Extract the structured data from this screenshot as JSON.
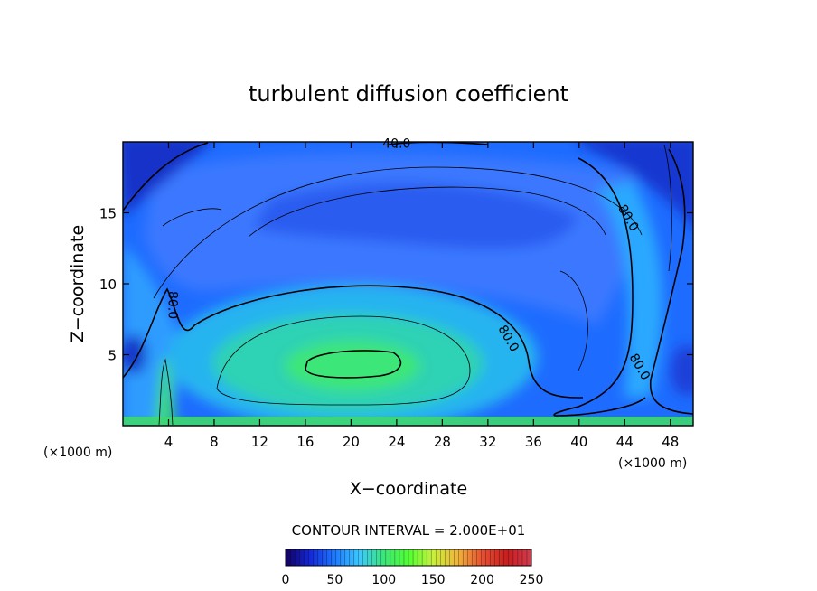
{
  "chart_data": {
    "type": "heatmap",
    "title": "turbulent diffusion coefficient",
    "xlabel": "X−coordinate",
    "ylabel": "Z−coordinate",
    "x_unit_left": "(×1000 m)",
    "x_unit_right": "(×1000 m)",
    "xlim": [
      0,
      50
    ],
    "ylim": [
      0,
      20
    ],
    "x_ticks": [
      4,
      8,
      12,
      16,
      20,
      24,
      28,
      32,
      36,
      40,
      44,
      48
    ],
    "y_ticks": [
      5,
      10,
      15
    ],
    "contour_interval_text": "CONTOUR INTERVAL = 2.000E+01",
    "contour_interval": 20,
    "contour_labels": [
      {
        "text": "40.0",
        "x": 24,
        "z": 19.6
      },
      {
        "text": "80.0",
        "x": 4,
        "z": 8.5
      },
      {
        "text": "80.0",
        "x": 33.5,
        "z": 6.0
      },
      {
        "text": "80.0",
        "x": 44,
        "z": 14.5
      },
      {
        "text": "80.0",
        "x": 45,
        "z": 4.0
      }
    ],
    "colorbar": {
      "min": 0,
      "max": 250,
      "ticks": [
        0,
        50,
        100,
        150,
        200,
        250
      ],
      "colors": [
        "#120060",
        "#1428d8",
        "#1e78ff",
        "#3cc8ff",
        "#3ce678",
        "#50ff32",
        "#c8f03c",
        "#f0b43c",
        "#e65032",
        "#c81e1e",
        "#d23c50"
      ]
    }
  }
}
